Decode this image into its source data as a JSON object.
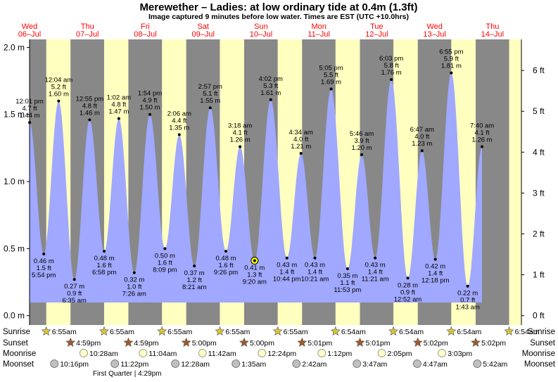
{
  "chart_data": {
    "type": "area",
    "title": "Merewether – Ladies: at low  ordinary tide at 0.4m (1.3ft)",
    "subtitle": "Image captured 9 minutes before low water. Times are EST (UTC +10.0hrs)",
    "ylim_m": [
      -0.07,
      2.06
    ],
    "ylim_ft": [
      -0.23,
      6.76
    ],
    "yticks_m": [
      "2.0 m",
      "1.5 m",
      "1.0 m",
      "0.5 m",
      "0.0 m"
    ],
    "yticks_m_values": [
      2.0,
      1.5,
      1.0,
      0.5,
      0.0
    ],
    "yticks_ft": [
      "6 ft",
      "5 ft",
      "4 ft",
      "3 ft",
      "2 ft",
      "1 ft",
      "0 ft"
    ],
    "yticks_ft_values": [
      6,
      5,
      4,
      3,
      2,
      1,
      0
    ],
    "x_range_hours": [
      0,
      204
    ],
    "days": [
      {
        "day": "Wed",
        "date": "06–Jul",
        "hour": 0
      },
      {
        "day": "Thu",
        "date": "07–Jul",
        "hour": 24
      },
      {
        "day": "Fri",
        "date": "08–Jul",
        "hour": 48
      },
      {
        "day": "Sat",
        "date": "09–Jul",
        "hour": 72
      },
      {
        "day": "Sun",
        "date": "10–Jul",
        "hour": 96
      },
      {
        "day": "Mon",
        "date": "11–Jul",
        "hour": 120
      },
      {
        "day": "Tue",
        "date": "12–Jul",
        "hour": 144
      },
      {
        "day": "Wed",
        "date": "13–Jul",
        "hour": 168
      },
      {
        "day": "Thu",
        "date": "14–Jul",
        "hour": 192
      }
    ],
    "night_intervals_hours": [
      [
        -6,
        6.92
      ],
      [
        16.98,
        30.92
      ],
      [
        40.98,
        54.92
      ],
      [
        64.98,
        78.92
      ],
      [
        89.0,
        102.92
      ],
      [
        113.02,
        126.9
      ],
      [
        137.02,
        150.9
      ],
      [
        161.03,
        174.9
      ],
      [
        185.03,
        198.9
      ],
      [
        209.0,
        222.9
      ]
    ],
    "tides": [
      {
        "hour": 0.017,
        "m": 1.44,
        "time": "12:01 pm",
        "ft": "4.7 ft",
        "m_label": "1.44 m",
        "type": "high"
      },
      {
        "hour": 5.9,
        "m": 0.46,
        "time": "5:54 pm",
        "ft": "1.5 ft",
        "m_label": "0.46 m",
        "type": "low"
      },
      {
        "hour": 12.07,
        "m": 1.6,
        "time": "12:04 am",
        "ft": "5.2 ft",
        "m_label": "1.60 m",
        "type": "high"
      },
      {
        "hour": 18.58,
        "m": 0.27,
        "time": "6:35 am",
        "ft": "0.9 ft",
        "m_label": "0.27 m",
        "type": "low"
      },
      {
        "hour": 24.92,
        "m": 1.46,
        "time": "12:55 pm",
        "ft": "4.8 ft",
        "m_label": "1.46 m",
        "type": "high"
      },
      {
        "hour": 30.97,
        "m": 0.48,
        "time": "6:58 pm",
        "ft": "1.6 ft",
        "m_label": "0.48 m",
        "type": "low"
      },
      {
        "hour": 37.03,
        "m": 1.47,
        "time": "1:02 am",
        "ft": "4.8 ft",
        "m_label": "1.47 m",
        "type": "high"
      },
      {
        "hour": 43.43,
        "m": 0.32,
        "time": "7:26 am",
        "ft": "1.0 ft",
        "m_label": "0.32 m",
        "type": "low"
      },
      {
        "hour": 49.9,
        "m": 1.5,
        "time": "1:54 pm",
        "ft": "4.9 ft",
        "m_label": "1.50 m",
        "type": "high"
      },
      {
        "hour": 56.15,
        "m": 0.5,
        "time": "8:09 pm",
        "ft": "1.6 ft",
        "m_label": "0.50 m",
        "type": "low"
      },
      {
        "hour": 62.1,
        "m": 1.35,
        "time": "2:06 am",
        "ft": "4.4 ft",
        "m_label": "1.35 m",
        "type": "high"
      },
      {
        "hour": 68.35,
        "m": 0.37,
        "time": "8:21 am",
        "ft": "1.2 ft",
        "m_label": "0.37 m",
        "type": "low"
      },
      {
        "hour": 74.95,
        "m": 1.55,
        "time": "2:57 pm",
        "ft": "5.1 ft",
        "m_label": "1.55 m",
        "type": "high"
      },
      {
        "hour": 81.43,
        "m": 0.48,
        "time": "9:26 pm",
        "ft": "1.6 ft",
        "m_label": "0.48 m",
        "type": "low"
      },
      {
        "hour": 87.3,
        "m": 1.26,
        "time": "3:18 am",
        "ft": "4.1 ft",
        "m_label": "1.26 m",
        "type": "high"
      },
      {
        "hour": 93.33,
        "m": 0.41,
        "time": "9:20 am",
        "ft": "1.3 ft",
        "m_label": "0.41 m",
        "type": "low",
        "current": true
      },
      {
        "hour": 100.03,
        "m": 1.61,
        "time": "4:02 pm",
        "ft": "5.3 ft",
        "m_label": "1.61 m",
        "type": "high"
      },
      {
        "hour": 106.73,
        "m": 0.43,
        "time": "10:44 pm",
        "ft": "1.4 ft",
        "m_label": "0.43 m",
        "type": "low"
      },
      {
        "hour": 112.57,
        "m": 1.21,
        "time": "4:34 am",
        "ft": "4.0 ft",
        "m_label": "1.21 m",
        "type": "high"
      },
      {
        "hour": 118.35,
        "m": 0.43,
        "time": "10:21 am",
        "ft": "1.4 ft",
        "m_label": "0.43 m",
        "type": "low"
      },
      {
        "hour": 125.08,
        "m": 1.69,
        "time": "5:05 pm",
        "ft": "5.5 ft",
        "m_label": "1.69 m",
        "type": "high"
      },
      {
        "hour": 131.88,
        "m": 0.35,
        "time": "11:53 pm",
        "ft": "1.1 ft",
        "m_label": "0.35 m",
        "type": "low"
      },
      {
        "hour": 137.77,
        "m": 1.2,
        "time": "5:46 am",
        "ft": "3.9 ft",
        "m_label": "1.20 m",
        "type": "high"
      },
      {
        "hour": 143.35,
        "m": 0.43,
        "time": "11:21 am",
        "ft": "1.4 ft",
        "m_label": "0.43 m",
        "type": "low"
      },
      {
        "hour": 150.05,
        "m": 1.76,
        "time": "6:03 pm",
        "ft": "5.8 ft",
        "m_label": "1.76 m",
        "type": "high"
      },
      {
        "hour": 156.87,
        "m": 0.28,
        "time": "12:52 am",
        "ft": "0.9 ft",
        "m_label": "0.28 m",
        "type": "low"
      },
      {
        "hour": 162.78,
        "m": 1.23,
        "time": "6:47 am",
        "ft": "4.0 ft",
        "m_label": "1.23 m",
        "type": "high"
      },
      {
        "hour": 168.3,
        "m": 0.42,
        "time": "12:18 pm",
        "ft": "1.4 ft",
        "m_label": "0.42 m",
        "type": "low"
      },
      {
        "hour": 174.92,
        "m": 1.81,
        "time": "6:55 pm",
        "ft": "5.9 ft",
        "m_label": "1.81 m",
        "type": "high"
      },
      {
        "hour": 181.72,
        "m": 0.22,
        "time": "1:43 am",
        "ft": "0.7 ft",
        "m_label": "0.22 m",
        "type": "low"
      },
      {
        "hour": 187.67,
        "m": 1.26,
        "time": "7:40 am",
        "ft": "4.1 ft",
        "m_label": "1.26 m",
        "type": "high"
      }
    ],
    "annotations": [
      {
        "text": "First Quarter | 4:29pm",
        "hour": 40.48
      }
    ]
  },
  "bottom_rows": {
    "labels": [
      "Sunrise",
      "Sunset",
      "Moonrise",
      "Moonset"
    ],
    "sunrise": [
      {
        "hour": 6.92,
        "time": "6:55am"
      },
      {
        "hour": 30.92,
        "time": "6:55am"
      },
      {
        "hour": 54.92,
        "time": "6:55am"
      },
      {
        "hour": 78.92,
        "time": "6:55am"
      },
      {
        "hour": 102.92,
        "time": "6:55am"
      },
      {
        "hour": 126.9,
        "time": "6:54am"
      },
      {
        "hour": 150.9,
        "time": "6:54am"
      },
      {
        "hour": 174.9,
        "time": "6:54am"
      },
      {
        "hour": 198.9,
        "time": "6:54am"
      }
    ],
    "sunset": [
      {
        "hour": 16.98,
        "time": "4:59pm"
      },
      {
        "hour": 40.98,
        "time": "4:59pm"
      },
      {
        "hour": 65.0,
        "time": "5:00pm"
      },
      {
        "hour": 89.0,
        "time": "5:00pm"
      },
      {
        "hour": 113.02,
        "time": "5:01pm"
      },
      {
        "hour": 137.02,
        "time": "5:01pm"
      },
      {
        "hour": 161.03,
        "time": "5:02pm"
      },
      {
        "hour": 185.03,
        "time": "5:02pm"
      }
    ],
    "moonrise": [
      {
        "hour": 22.47,
        "time": "10:28am"
      },
      {
        "hour": 47.07,
        "time": "11:04am"
      },
      {
        "hour": 71.7,
        "time": "11:42am"
      },
      {
        "hour": 96.4,
        "time": "12:24pm"
      },
      {
        "hour": 121.2,
        "time": "1:12pm"
      },
      {
        "hour": 146.08,
        "time": "2:05pm"
      },
      {
        "hour": 171.05,
        "time": "3:03pm"
      }
    ],
    "moonset": [
      {
        "hour": 10.27,
        "time": "10:16pm"
      },
      {
        "hour": 35.37,
        "time": "11:22pm"
      },
      {
        "hour": 60.47,
        "time": "12:28am"
      },
      {
        "hour": 85.58,
        "time": "1:35am"
      },
      {
        "hour": 110.7,
        "time": "2:42am"
      },
      {
        "hour": 135.78,
        "time": "3:47am"
      },
      {
        "hour": 160.78,
        "time": "4:47am"
      },
      {
        "hour": 185.7,
        "time": "5:42am"
      }
    ]
  },
  "colors": {
    "day_band": "#ffffc0",
    "night_band": "#888888",
    "water": "#a0a8ff",
    "day_label": "#ff0000",
    "text": "#000000",
    "star": "#d8c43a",
    "sunset_star": "#a05a2a",
    "moonrise": "#ffffc8",
    "moonset": "#c0c0c0",
    "current_marker": "#ffff00"
  }
}
